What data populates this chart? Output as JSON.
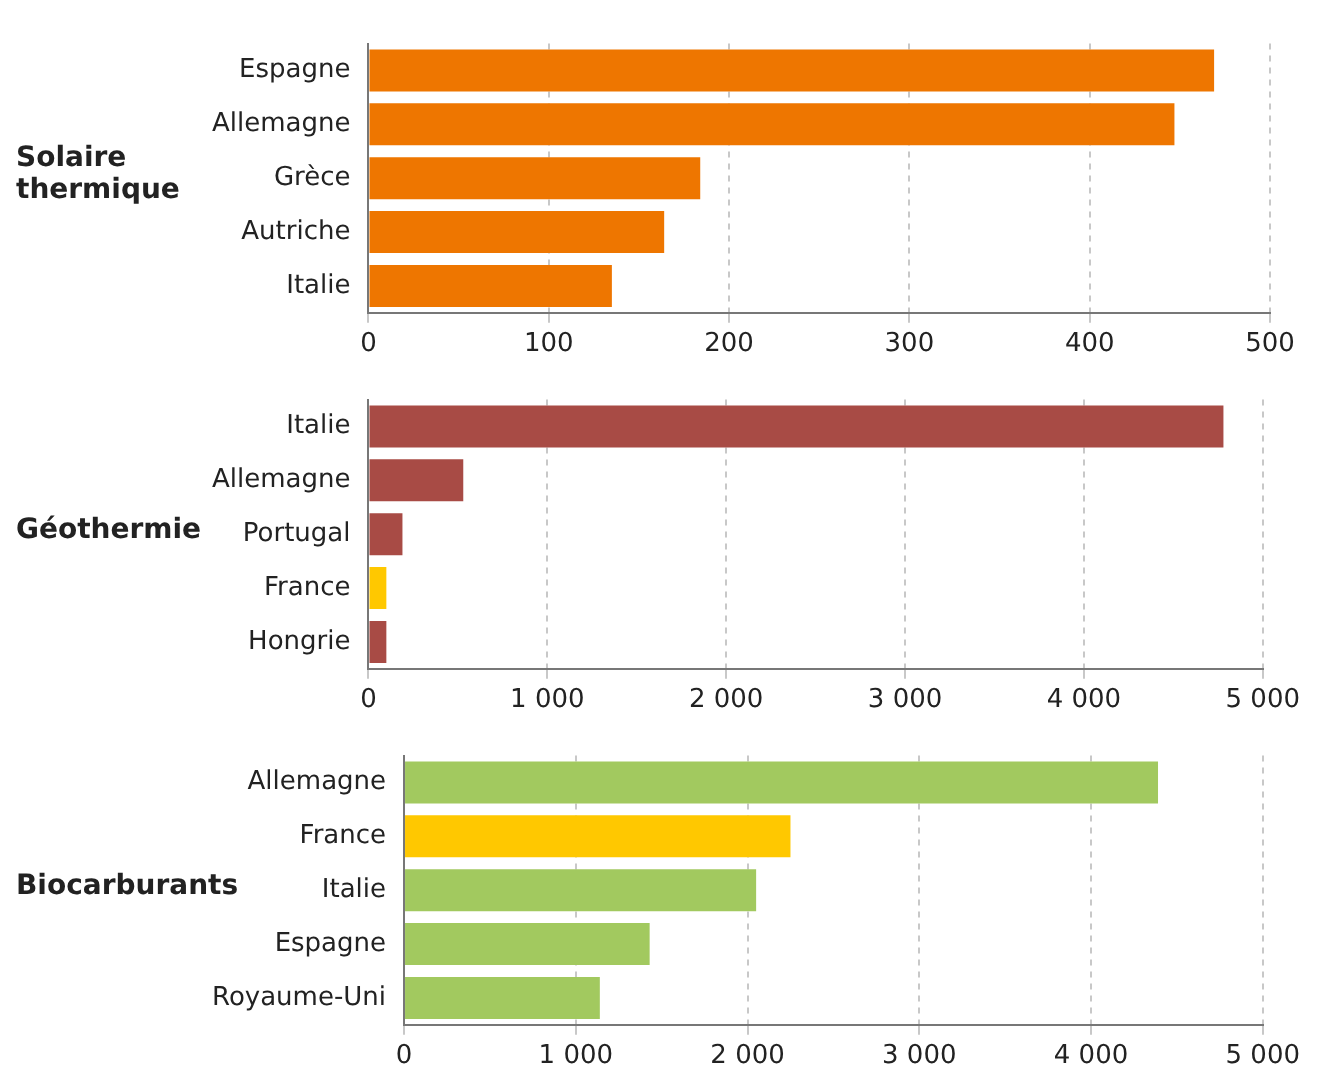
{
  "chart_data": [
    {
      "type": "bar",
      "orientation": "horizontal",
      "ylabel": "Solaire thermique",
      "categories": [
        "Espagne",
        "Allemagne",
        "Grèce",
        "Autriche",
        "Italie"
      ],
      "values": [
        469,
        447,
        184,
        164,
        135
      ],
      "colors": [
        "#ee7600",
        "#ee7600",
        "#ee7600",
        "#ee7600",
        "#ee7600"
      ],
      "xlim": [
        0,
        500
      ],
      "xticks": [
        0,
        100,
        200,
        300,
        400,
        500
      ],
      "grid": "x"
    },
    {
      "type": "bar",
      "orientation": "horizontal",
      "ylabel": "Géothermie",
      "categories": [
        "Italie",
        "Allemagne",
        "Portugal",
        "France",
        "Hongrie"
      ],
      "values": [
        4780,
        530,
        190,
        100,
        100
      ],
      "colors": [
        "#a84b45",
        "#a84b45",
        "#a84b45",
        "#ffc800",
        "#a84b45"
      ],
      "xlim": [
        0,
        5000
      ],
      "xticks": [
        0,
        {
          "value": 1000,
          "label": "1 000"
        },
        {
          "value": 2000,
          "label": "2 000"
        },
        {
          "value": 3000,
          "label": "3 000"
        },
        {
          "value": 4000,
          "label": "4 000"
        },
        {
          "value": 5000,
          "label": "5 000"
        }
      ],
      "grid": "x"
    },
    {
      "type": "bar",
      "orientation": "horizontal",
      "ylabel": "Biocarburants",
      "categories": [
        "Allemagne",
        "France",
        "Italie",
        "Espagne",
        "Royaume-Uni"
      ],
      "values": [
        4390,
        2250,
        2050,
        1430,
        1140
      ],
      "colors": [
        "#a2c95f",
        "#ffc800",
        "#a2c95f",
        "#a2c95f",
        "#a2c95f"
      ],
      "xlim": [
        0,
        5000
      ],
      "xticks": [
        0,
        {
          "value": 1000,
          "label": "1 000"
        },
        {
          "value": 2000,
          "label": "2 000"
        },
        {
          "value": 3000,
          "label": "3 000"
        },
        {
          "value": 4000,
          "label": "4 000"
        },
        {
          "value": 5000,
          "label": "5 000"
        }
      ],
      "grid": "x"
    }
  ]
}
